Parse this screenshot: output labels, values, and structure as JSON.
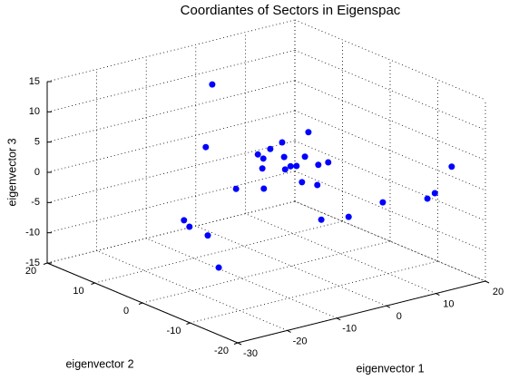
{
  "chart_data": {
    "type": "scatter3d",
    "title": "Coordiantes of Sectors in Eigenspac",
    "xlabel": "eigenvector 1",
    "ylabel": "eigenvector 2",
    "zlabel": "eigenvector 3",
    "x": [
      -6.3,
      -7.6,
      3.5,
      -1.8,
      -4.2,
      -6.7,
      -5.6,
      -1.4,
      2.8,
      7.5,
      5.5,
      -5.8,
      1.1,
      -0.1,
      -1.2,
      2.2,
      5.3,
      -11.1,
      -5.5,
      18.0,
      14.6,
      13.1,
      8.9,
      2.0,
      6.1,
      -12.0,
      -10.9,
      -7.2,
      -14.6
    ],
    "y": [
      10,
      10,
      0,
      0,
      0,
      0,
      0,
      0,
      0,
      0,
      0,
      0,
      0,
      0,
      0,
      0,
      0,
      0,
      0,
      -15,
      -15,
      -15,
      -10,
      -10,
      0,
      10,
      10,
      10,
      0
    ],
    "z": [
      13.0,
      2.9,
      6.4,
      5.8,
      5.2,
      4.8,
      3.9,
      3.3,
      2.5,
      0.6,
      0.6,
      2.3,
      1.3,
      1.5,
      1.2,
      -1.6,
      -2.7,
      0.0,
      -1.1,
      2.7,
      -1.0,
      -1.6,
      -3.0,
      -4.0,
      -8.6,
      -8.3,
      -9.6,
      -11.8,
      -12.3
    ],
    "color": "#0000ff",
    "xlim": [
      -30,
      20
    ],
    "xticks": [
      -30,
      -20,
      -10,
      0,
      10,
      20
    ],
    "ylim": [
      -20,
      20
    ],
    "yticks": [
      -20,
      -10,
      0,
      10,
      20
    ],
    "zlim": [
      -15,
      15
    ],
    "zticks": [
      -15,
      -10,
      -5,
      0,
      5,
      10,
      15
    ],
    "grid": true
  }
}
